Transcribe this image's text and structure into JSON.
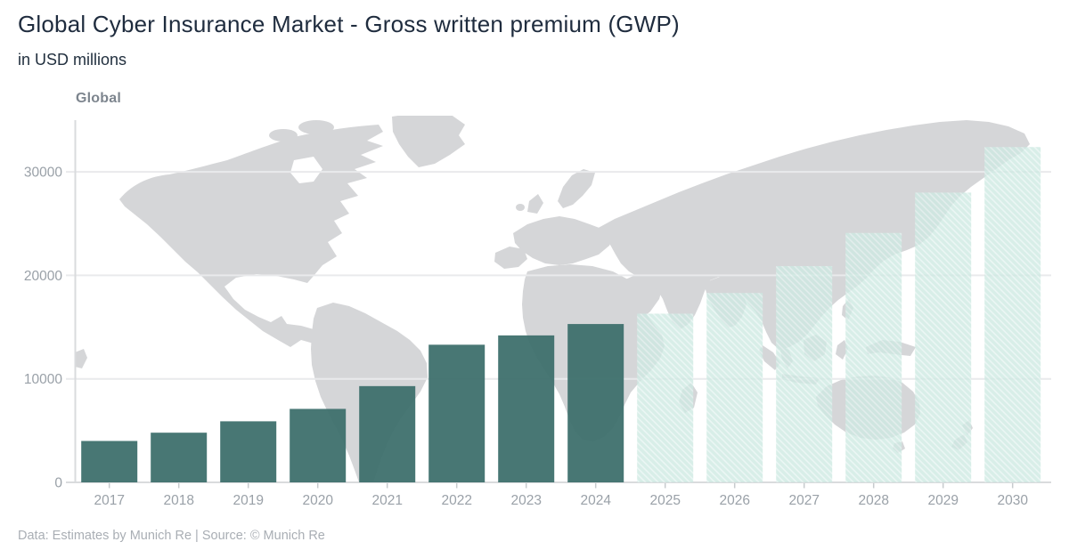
{
  "header": {
    "title": "Global Cyber Insurance Market - Gross written premium (GWP)",
    "subtitle": "in USD millions"
  },
  "footer": {
    "source": "Data: Estimates by Munich Re | Source: © Munich Re"
  },
  "colors": {
    "title_text": "#1f2c3e",
    "panel_label_text": "#7d858e",
    "footnote_text": "#a9aeb4",
    "actual_bar": "#3d6e6b",
    "estimate_bar": "#cde9e2",
    "estimate_hatch": "#ffffff",
    "world_map": "#d5d6d8",
    "gridline": "#e9eaec",
    "axis_line": "#d9dbdd",
    "tick_mark": "#c7cbce",
    "tick_label": "#9aa1a8"
  },
  "chart_data": {
    "type": "bar",
    "title": "Global",
    "unit": "USD millions",
    "categories": [
      "2017",
      "2018",
      "2019",
      "2020",
      "2021",
      "2022",
      "2023",
      "2024",
      "2025",
      "2026",
      "2027",
      "2028",
      "2029",
      "2030"
    ],
    "values": [
      4000,
      4800,
      5900,
      7100,
      9300,
      13300,
      14200,
      15300,
      16300,
      18300,
      20900,
      24100,
      28000,
      32400
    ],
    "bar_styles": [
      "actual",
      "actual",
      "actual",
      "actual",
      "actual",
      "actual",
      "actual",
      "actual",
      "estimate",
      "estimate",
      "estimate",
      "estimate",
      "estimate",
      "estimate"
    ],
    "yticks": [
      0,
      10000,
      20000,
      30000
    ],
    "ylim": [
      0,
      35000
    ],
    "grid": "horizontal",
    "legend": "none",
    "background": "world-map",
    "colors": {
      "actual": "#3d6e6b",
      "estimate": "#cde9e2",
      "estimate_hatch": "#ffffff",
      "map": "#d5d6d8",
      "grid": "#e9eaec",
      "axis": "#d9dbdd",
      "tick": "#c7cbce",
      "tick_label": "#9aa1a8"
    }
  }
}
